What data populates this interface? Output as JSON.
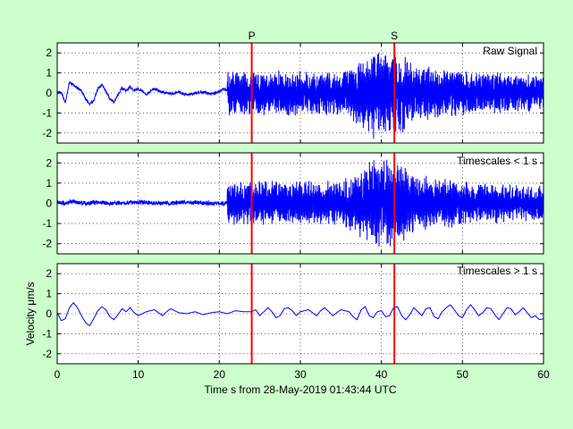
{
  "figure": {
    "background": "#ccffcc"
  },
  "chart_data": {
    "type": "line",
    "xlabel": "Time s from 28-May-2019 01:43:44 UTC",
    "ylabel": "Velocity μm/s",
    "xlim": [
      0,
      60
    ],
    "xticks": [
      0,
      10,
      20,
      30,
      40,
      50,
      60
    ],
    "grid": true,
    "line_color": "#0000ff",
    "marker_color": "#ff0000",
    "markers": [
      {
        "label": "P",
        "x": 24.0
      },
      {
        "label": "S",
        "x": 41.6
      }
    ],
    "panels": [
      {
        "title": "Raw Signal",
        "ylim": [
          -2.5,
          2.5
        ],
        "yticks": [
          -2,
          -1,
          0,
          1,
          2
        ],
        "series": {
          "pre_event_curve": [
            [
              0,
              0
            ],
            [
              0.5,
              0.05
            ],
            [
              1,
              -0.5
            ],
            [
              1.5,
              0.55
            ],
            [
              2,
              0.4
            ],
            [
              2.5,
              0.25
            ],
            [
              3,
              0.1
            ],
            [
              3.5,
              -0.3
            ],
            [
              4,
              -0.55
            ],
            [
              4.5,
              -0.4
            ],
            [
              5,
              0.2
            ],
            [
              5.5,
              0.4
            ],
            [
              6,
              0.1
            ],
            [
              6.5,
              -0.3
            ],
            [
              7,
              -0.45
            ],
            [
              7.5,
              -0.1
            ],
            [
              8,
              0.25
            ],
            [
              8.5,
              0.1
            ],
            [
              9,
              0.3
            ],
            [
              9.5,
              0.1
            ],
            [
              10,
              0.2
            ],
            [
              10.5,
              0.1
            ],
            [
              11,
              -0.1
            ],
            [
              11.5,
              0.1
            ],
            [
              12,
              0.2
            ],
            [
              13,
              0.05
            ],
            [
              14,
              -0.05
            ],
            [
              15,
              0.05
            ],
            [
              16,
              -0.1
            ],
            [
              17,
              0
            ],
            [
              18,
              0.05
            ],
            [
              19,
              -0.05
            ],
            [
              20,
              0.05
            ],
            [
              20.5,
              0.2
            ],
            [
              21,
              0.1
            ]
          ],
          "pre_event_noise": 0.06,
          "event_amplitude": [
            [
              21,
              1.0
            ],
            [
              24,
              1.0
            ],
            [
              30,
              1.0
            ],
            [
              35,
              1.0
            ],
            [
              37,
              1.5
            ],
            [
              39,
              2.0
            ],
            [
              41,
              2.0
            ],
            [
              42.5,
              1.8
            ],
            [
              44,
              1.3
            ],
            [
              48,
              1.1
            ],
            [
              55,
              0.9
            ],
            [
              60,
              0.8
            ]
          ]
        }
      },
      {
        "title": "Timescales < 1 s",
        "ylim": [
          -2.5,
          2.5
        ],
        "yticks": [
          -2,
          -1,
          0,
          1,
          2
        ],
        "series": {
          "pre_event_curve": [
            [
              0,
              0.05
            ],
            [
              1,
              0
            ],
            [
              2,
              0.1
            ],
            [
              3,
              0
            ],
            [
              5,
              0.05
            ],
            [
              7,
              0
            ],
            [
              10,
              0.05
            ],
            [
              13,
              0
            ],
            [
              16,
              0.05
            ],
            [
              19,
              0
            ],
            [
              21,
              0
            ]
          ],
          "pre_event_noise": 0.1,
          "event_amplitude": [
            [
              21,
              1.0
            ],
            [
              24,
              1.0
            ],
            [
              30,
              1.0
            ],
            [
              35,
              1.0
            ],
            [
              37,
              1.5
            ],
            [
              39,
              2.0
            ],
            [
              41,
              2.0
            ],
            [
              42.5,
              1.8
            ],
            [
              44,
              1.3
            ],
            [
              48,
              1.1
            ],
            [
              55,
              0.9
            ],
            [
              60,
              0.8
            ]
          ]
        }
      },
      {
        "title": "Timescales > 1 s",
        "ylim": [
          -2.5,
          2.5
        ],
        "yticks": [
          -2,
          -1,
          0,
          1,
          2
        ],
        "series": {
          "curve": [
            [
              0,
              0.05
            ],
            [
              0.5,
              -0.35
            ],
            [
              1,
              -0.25
            ],
            [
              1.5,
              0.3
            ],
            [
              2,
              0.55
            ],
            [
              2.5,
              0.3
            ],
            [
              3,
              -0.1
            ],
            [
              3.5,
              -0.45
            ],
            [
              4,
              -0.6
            ],
            [
              4.5,
              -0.25
            ],
            [
              5,
              0.15
            ],
            [
              5.5,
              0.35
            ],
            [
              6,
              0.2
            ],
            [
              6.5,
              -0.15
            ],
            [
              7,
              -0.3
            ],
            [
              7.5,
              -0.05
            ],
            [
              8,
              0.25
            ],
            [
              8.5,
              0.1
            ],
            [
              9,
              0.3
            ],
            [
              9.5,
              0.05
            ],
            [
              10,
              -0.1
            ],
            [
              11,
              0.1
            ],
            [
              12,
              0.2
            ],
            [
              13,
              -0.1
            ],
            [
              13.5,
              0.1
            ],
            [
              14,
              0.25
            ],
            [
              15,
              0.05
            ],
            [
              16,
              0
            ],
            [
              17,
              0.1
            ],
            [
              18,
              -0.05
            ],
            [
              19,
              0.05
            ],
            [
              20,
              0.1
            ],
            [
              21,
              0
            ],
            [
              22,
              0.15
            ],
            [
              23,
              0.1
            ],
            [
              24,
              0.1
            ],
            [
              24.5,
              0.2
            ],
            [
              25,
              -0.1
            ],
            [
              25.5,
              0.1
            ],
            [
              26,
              0.3
            ],
            [
              26.5,
              0.1
            ],
            [
              27,
              -0.2
            ],
            [
              27.5,
              -0.1
            ],
            [
              28,
              0.25
            ],
            [
              28.5,
              0.3
            ],
            [
              29,
              0.15
            ],
            [
              29.5,
              -0.1
            ],
            [
              30,
              0.1
            ],
            [
              31,
              0.2
            ],
            [
              32,
              -0.1
            ],
            [
              32.5,
              0.15
            ],
            [
              33,
              0.3
            ],
            [
              33.5,
              0.1
            ],
            [
              34,
              -0.1
            ],
            [
              35,
              0.2
            ],
            [
              36,
              0.1
            ],
            [
              36.5,
              -0.15
            ],
            [
              37,
              -0.3
            ],
            [
              37.5,
              0.2
            ],
            [
              38,
              0.35
            ],
            [
              38.5,
              -0.1
            ],
            [
              39,
              -0.2
            ],
            [
              39.5,
              0.1
            ],
            [
              40,
              0.15
            ],
            [
              40.5,
              -0.15
            ],
            [
              41,
              -0.1
            ],
            [
              41.5,
              0.3
            ],
            [
              42,
              0.35
            ],
            [
              42.5,
              -0.1
            ],
            [
              43,
              -0.3
            ],
            [
              43.5,
              -0.05
            ],
            [
              44,
              0.3
            ],
            [
              44.5,
              0.1
            ],
            [
              45,
              -0.1
            ],
            [
              45.5,
              0.25
            ],
            [
              46,
              0.3
            ],
            [
              46.5,
              -0.15
            ],
            [
              47,
              -0.25
            ],
            [
              47.5,
              0.1
            ],
            [
              48,
              0.3
            ],
            [
              48.5,
              0.45
            ],
            [
              49,
              0.2
            ],
            [
              49.5,
              -0.1
            ],
            [
              50,
              -0.2
            ],
            [
              50.5,
              0.2
            ],
            [
              51,
              0.45
            ],
            [
              51.5,
              0.2
            ],
            [
              52,
              -0.1
            ],
            [
              52.5,
              0.05
            ],
            [
              53,
              0.3
            ],
            [
              53.5,
              0.25
            ],
            [
              54,
              -0.05
            ],
            [
              54.5,
              -0.3
            ],
            [
              55,
              0
            ],
            [
              55.5,
              0.3
            ],
            [
              56,
              0.25
            ],
            [
              56.5,
              -0.05
            ],
            [
              57,
              0.1
            ],
            [
              57.5,
              0.3
            ],
            [
              58,
              0.05
            ],
            [
              58.5,
              -0.2
            ],
            [
              59,
              -0.1
            ],
            [
              59.5,
              -0.3
            ],
            [
              60,
              -0.25
            ]
          ]
        }
      }
    ]
  }
}
